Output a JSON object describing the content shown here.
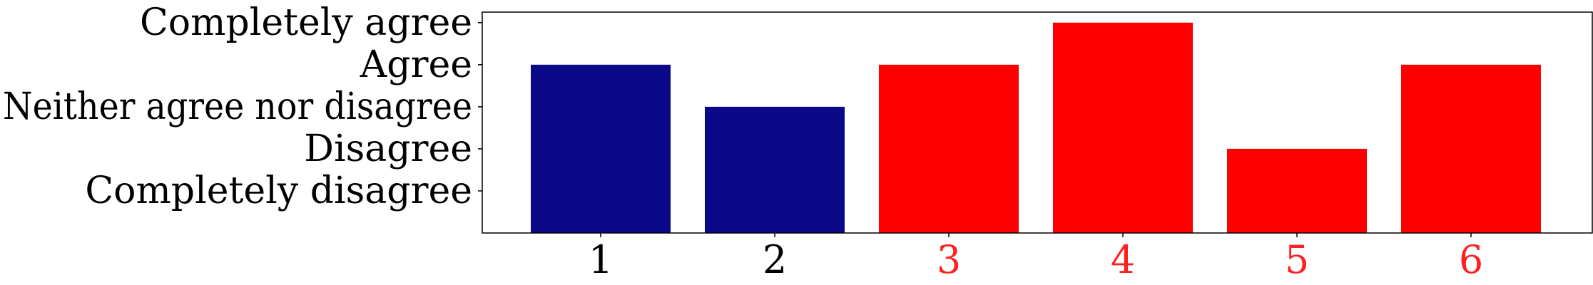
{
  "chart_data": {
    "type": "bar",
    "categories": [
      "1",
      "2",
      "3",
      "4",
      "5",
      "6"
    ],
    "values": [
      4,
      3,
      4,
      5,
      2,
      4
    ],
    "bar_colors": [
      "#0a0a88",
      "#0a0a88",
      "#ff0000",
      "#ff0000",
      "#ff0000",
      "#ff0000"
    ],
    "xtick_colors": [
      "#000000",
      "#000000",
      "#ff2020",
      "#ff2020",
      "#ff2020",
      "#ff2020"
    ],
    "yticks": [
      {
        "value": 1,
        "label": "Completely disagree"
      },
      {
        "value": 2,
        "label": "Disagree"
      },
      {
        "value": 3,
        "label": "Neither agree nor disagree"
      },
      {
        "value": 4,
        "label": "Agree"
      },
      {
        "value": 5,
        "label": "Completely agree"
      }
    ],
    "ylim": [
      0,
      5.25
    ],
    "grid": false,
    "title": "",
    "xlabel": "",
    "ylabel": ""
  }
}
